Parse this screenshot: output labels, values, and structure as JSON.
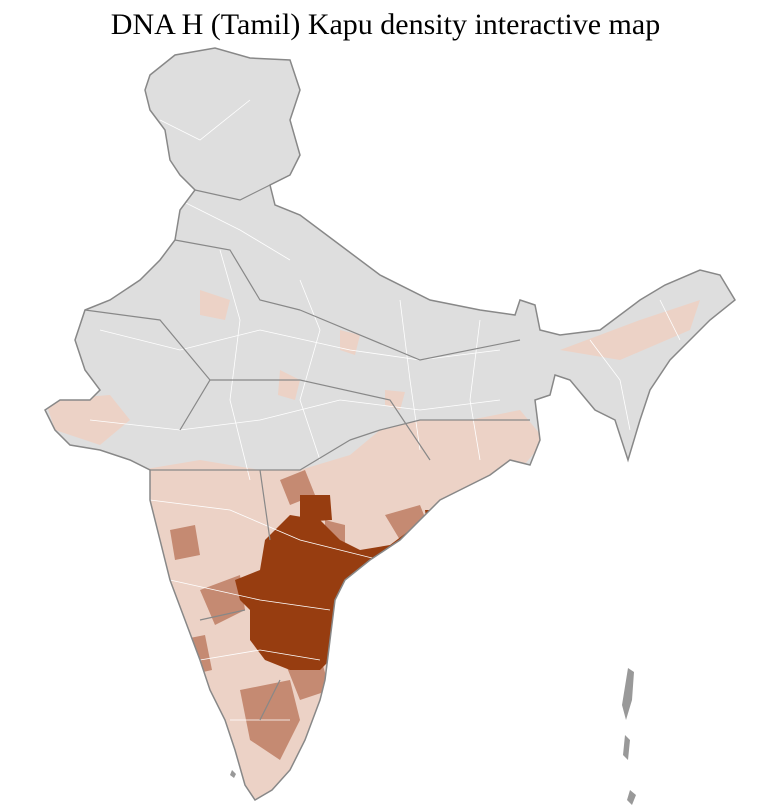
{
  "title": "DNA H (Tamil) Kapu density interactive map"
}
